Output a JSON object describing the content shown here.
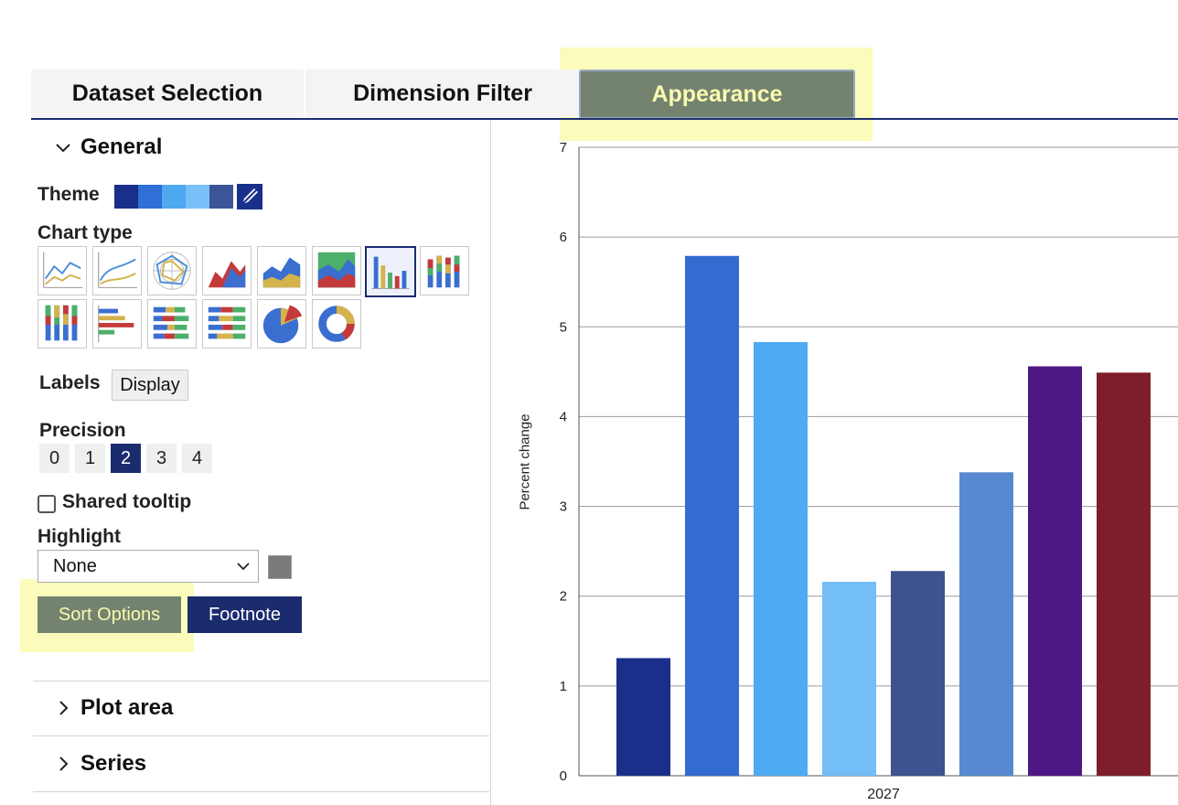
{
  "tabs": {
    "dataset_selection": "Dataset Selection",
    "dimension_filter": "Dimension Filter",
    "appearance": "Appearance"
  },
  "general": {
    "section_title": "General",
    "theme_label": "Theme",
    "theme_colors": [
      "#1a2f8a",
      "#2f6fd6",
      "#4fa8f0",
      "#78c0f8",
      "#3e5499"
    ],
    "chart_type_label": "Chart type",
    "chart_types": [
      "line",
      "smooth-line",
      "radar",
      "area",
      "stacked-area",
      "percent-area",
      "column",
      "stacked-column",
      "percent-column",
      "bar",
      "stacked-bar",
      "percent-bar",
      "pie",
      "donut"
    ],
    "selected_chart_type": "column",
    "labels_label": "Labels",
    "labels_button": "Display",
    "precision_label": "Precision",
    "precision_options": [
      "0",
      "1",
      "2",
      "3",
      "4"
    ],
    "precision_selected": "2",
    "shared_tooltip_label": "Shared tooltip",
    "shared_tooltip_checked": false,
    "highlight_label": "Highlight",
    "highlight_value": "None",
    "highlight_color": "#7a7a7a",
    "sort_options_button": "Sort Options",
    "footnote_button": "Footnote"
  },
  "sections": {
    "plot_area": "Plot area",
    "series": "Series"
  },
  "chart_data": {
    "type": "bar",
    "categories": [
      "2027"
    ],
    "series": [
      {
        "values": [
          1.31
        ],
        "color": "#1a2f8a"
      },
      {
        "values": [
          5.79
        ],
        "color": "#336cd0"
      },
      {
        "values": [
          4.83
        ],
        "color": "#4eaaf2"
      },
      {
        "values": [
          2.16
        ],
        "color": "#73bef7"
      },
      {
        "values": [
          2.28
        ],
        "color": "#3d528e"
      },
      {
        "values": [
          3.38
        ],
        "color": "#5689d0"
      },
      {
        "values": [
          4.56
        ],
        "color": "#4e1785"
      },
      {
        "values": [
          4.49
        ],
        "color": "#7e1e2a"
      }
    ],
    "ylabel": "Percent change",
    "ylim": [
      0,
      7
    ],
    "yticks": [
      "0",
      "1",
      "2",
      "3",
      "4",
      "5",
      "6",
      "7"
    ],
    "grid": true
  }
}
